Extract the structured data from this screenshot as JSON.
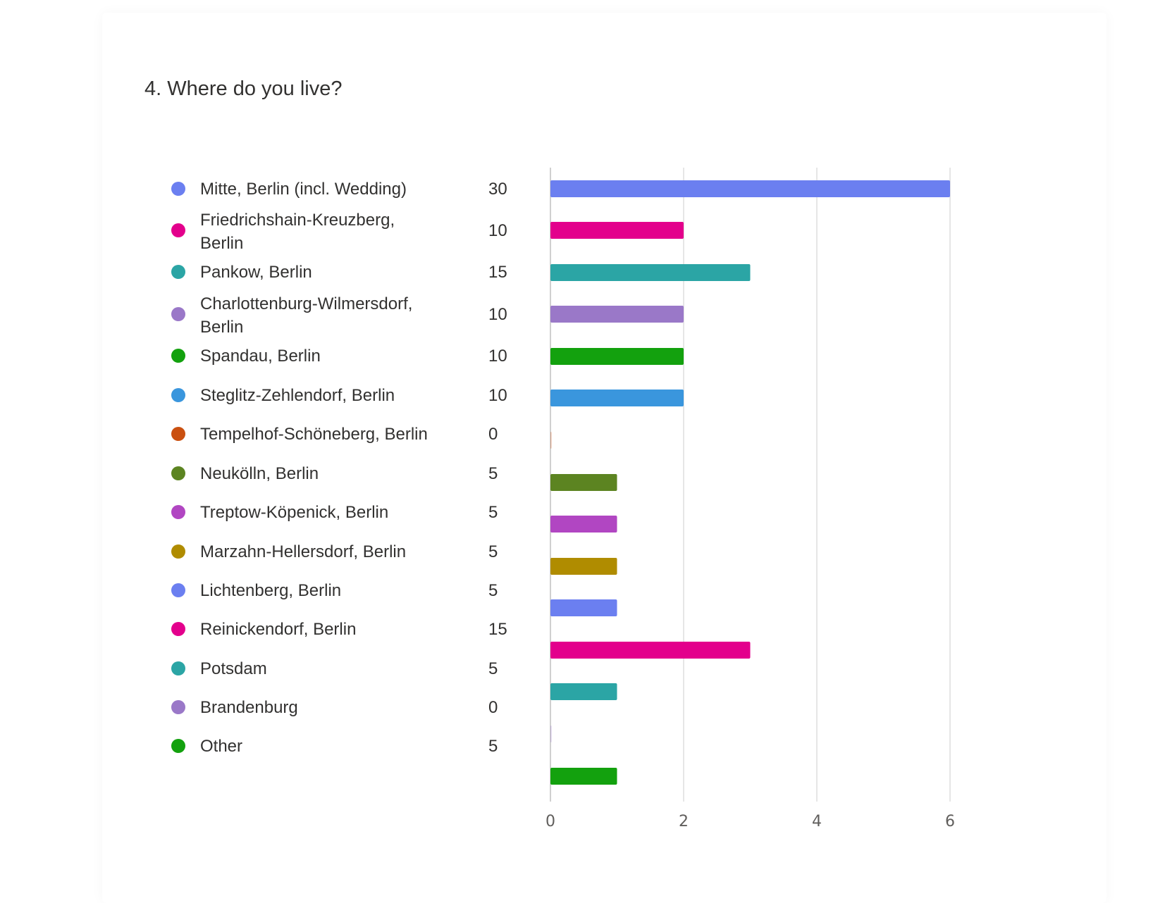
{
  "question": {
    "title": "4. Where do you live?"
  },
  "chart_data": {
    "type": "bar",
    "orientation": "horizontal",
    "categories": [
      "Mitte, Berlin (incl. Wedding)",
      "Friedrichshain-Kreuzberg, Berlin",
      "Pankow, Berlin",
      "Charlottenburg-Wilmersdorf, Berlin",
      "Spandau, Berlin",
      "Steglitz-Zehlendorf, Berlin",
      "Tempelhof-Schöneberg, Berlin",
      "Neukölln, Berlin",
      "Treptow-Köpenick, Berlin",
      "Marzahn-Hellersdorf, Berlin",
      "Lichtenberg, Berlin",
      "Reinickendorf, Berlin",
      "Potsdam",
      "Brandenburg",
      "Other"
    ],
    "legend_values": [
      "30",
      "10",
      "15",
      "10",
      "10",
      "10",
      "0",
      "5",
      "5",
      "5",
      "5",
      "15",
      "5",
      "0",
      "5"
    ],
    "values": [
      6,
      2,
      3,
      2,
      2,
      2,
      0,
      1,
      1,
      1,
      1,
      3,
      1,
      0,
      1
    ],
    "colors": [
      "#6b7ff0",
      "#e3008c",
      "#2ba5a5",
      "#9a78c8",
      "#13a10e",
      "#3a96dd",
      "#ca5010",
      "#5c8421",
      "#b146c2",
      "#b08c00",
      "#6b7ff0",
      "#e3008c",
      "#2ba5a5",
      "#9a78c8",
      "#13a10e"
    ],
    "xlim": [
      0,
      6
    ],
    "xticks": [
      "0",
      "2",
      "4",
      "6"
    ],
    "grid": true,
    "legend_position": "left"
  }
}
